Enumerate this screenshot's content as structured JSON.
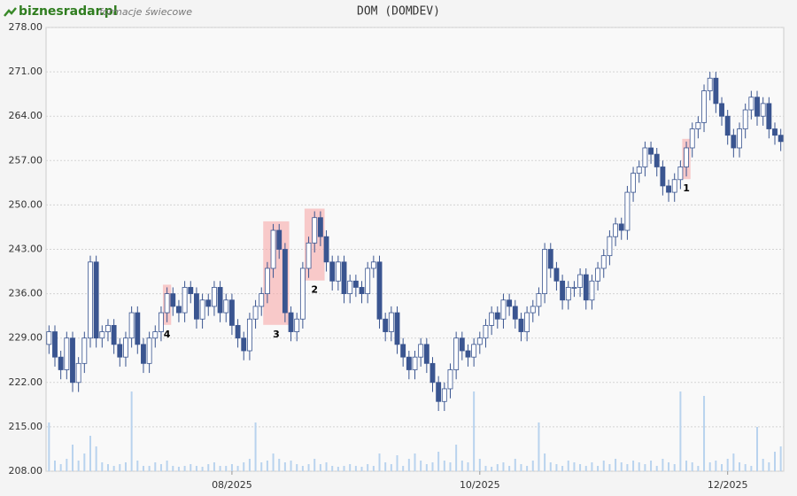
{
  "header": {
    "brand": "biznesradar.pl",
    "subtitle": "formacje świecowe"
  },
  "chart_data": {
    "type": "candlestick",
    "title": "DOM (DOMDEV)",
    "categories": [
      null,
      null,
      null,
      null,
      null,
      null,
      null,
      null,
      null,
      null,
      null,
      null,
      null,
      null,
      null,
      null,
      null,
      null,
      null,
      null,
      null,
      null,
      null,
      null,
      null,
      null,
      null,
      null,
      null,
      null,
      null,
      "08/2025",
      null,
      null,
      null,
      null,
      null,
      null,
      null,
      null,
      null,
      null,
      null,
      null,
      null,
      null,
      null,
      null,
      null,
      null,
      null,
      null,
      null,
      null,
      null,
      null,
      null,
      null,
      null,
      null,
      null,
      null,
      null,
      null,
      null,
      null,
      null,
      null,
      null,
      null,
      null,
      null,
      null,
      "10/2025",
      null,
      null,
      null,
      null,
      null,
      null,
      null,
      null,
      null,
      null,
      null,
      null,
      null,
      null,
      null,
      null,
      null,
      null,
      null,
      null,
      null,
      null,
      null,
      null,
      null,
      null,
      null,
      null,
      null,
      null,
      null,
      null,
      null,
      null,
      null,
      null,
      null,
      null,
      null,
      null,
      null,
      "12/2025",
      null,
      null,
      null,
      null,
      null,
      null,
      null,
      null,
      null
    ],
    "open": [
      228,
      230,
      226,
      224,
      229,
      222,
      225,
      229,
      241,
      229,
      230,
      231,
      228,
      226,
      229,
      233,
      228,
      225,
      229,
      230,
      233,
      236,
      234,
      233,
      237,
      236,
      232,
      235,
      234,
      237,
      233,
      235,
      231,
      229,
      227,
      232,
      234,
      236,
      240,
      246,
      243,
      233,
      230,
      232,
      240,
      244,
      248,
      245,
      241,
      238,
      241,
      236,
      238,
      237,
      236,
      240,
      241,
      232,
      230,
      233,
      228,
      226,
      224,
      226,
      228,
      225,
      222,
      219,
      221,
      224,
      229,
      227,
      226,
      228,
      229,
      231,
      233,
      232,
      235,
      234,
      232,
      230,
      233,
      234,
      236,
      243,
      240,
      238,
      235,
      237,
      237,
      239,
      235,
      238,
      240,
      242,
      245,
      247,
      246,
      252,
      255,
      256,
      259,
      258,
      256,
      253,
      252,
      254,
      256,
      259,
      262,
      263,
      268,
      270,
      266,
      264,
      261,
      259,
      262,
      265,
      267,
      264,
      266,
      262,
      261
    ],
    "high": [
      231,
      231,
      227,
      230,
      230,
      226,
      230,
      242,
      242,
      231,
      232,
      232,
      229,
      230,
      234,
      234,
      229,
      230,
      231,
      234,
      237,
      237,
      235,
      238,
      238,
      237,
      236,
      236,
      238,
      238,
      236,
      236,
      232,
      230,
      233,
      235,
      237,
      241,
      247,
      247,
      244,
      234,
      233,
      241,
      245,
      249,
      249,
      246,
      242,
      242,
      242,
      239,
      239,
      238,
      241,
      242,
      242,
      233,
      234,
      234,
      229,
      227,
      227,
      229,
      229,
      226,
      223,
      222,
      225,
      230,
      230,
      228,
      229,
      230,
      232,
      234,
      234,
      236,
      236,
      235,
      233,
      234,
      235,
      237,
      244,
      244,
      241,
      239,
      238,
      238,
      240,
      240,
      239,
      241,
      243,
      246,
      248,
      248,
      253,
      256,
      257,
      260,
      260,
      259,
      257,
      254,
      255,
      257,
      260,
      263,
      264,
      269,
      271,
      271,
      267,
      265,
      262,
      263,
      266,
      268,
      268,
      267,
      267,
      263,
      262
    ],
    "low": [
      226.5,
      224.5,
      222.5,
      222.5,
      220.5,
      220.5,
      223.5,
      227.5,
      227.5,
      227.5,
      228.5,
      226.5,
      224.5,
      224.5,
      227.5,
      226.5,
      223.5,
      223.5,
      227.5,
      228.5,
      231.5,
      232.5,
      231.5,
      231.5,
      234.5,
      230.5,
      230.5,
      232.5,
      232.5,
      231.5,
      231.5,
      229.5,
      227.5,
      225.5,
      225.5,
      230.5,
      232.5,
      234.5,
      238.5,
      241.5,
      231.5,
      228.5,
      228.5,
      230.5,
      238.5,
      242.5,
      243.5,
      239.5,
      236.5,
      236.5,
      234.5,
      234.5,
      235.5,
      234.5,
      234.5,
      238.5,
      230.5,
      228.5,
      228.5,
      226.5,
      224.5,
      222.5,
      222.5,
      224.5,
      223.5,
      220.5,
      217.5,
      217.5,
      219.5,
      222.5,
      225.5,
      224.5,
      224.5,
      226.5,
      227.5,
      229.5,
      230.5,
      230.5,
      232.5,
      230.5,
      228.5,
      228.5,
      231.5,
      232.5,
      234.5,
      238.5,
      236.5,
      233.5,
      233.5,
      235.5,
      235.5,
      233.5,
      233.5,
      236.5,
      238.5,
      240.5,
      243.5,
      244.5,
      244.5,
      250.5,
      253.5,
      254.5,
      256.5,
      254.5,
      251.5,
      250.5,
      250.5,
      252.5,
      254.5,
      257.5,
      260.5,
      261.5,
      266.5,
      264.5,
      262.5,
      259.5,
      257.5,
      257.5,
      260.5,
      263.5,
      262.5,
      262.5,
      260.5,
      259.5,
      258.5
    ],
    "close": [
      230,
      226,
      224,
      229,
      222,
      225,
      229,
      241,
      229,
      230,
      231,
      228,
      226,
      229,
      233,
      228,
      225,
      229,
      230,
      233,
      236,
      234,
      233,
      237,
      236,
      232,
      235,
      234,
      237,
      233,
      235,
      231,
      229,
      227,
      232,
      234,
      236,
      240,
      246,
      243,
      233,
      230,
      232,
      240,
      244,
      248,
      245,
      241,
      238,
      241,
      236,
      238,
      237,
      236,
      240,
      241,
      232,
      230,
      233,
      228,
      226,
      224,
      226,
      228,
      225,
      222,
      219,
      221,
      224,
      229,
      227,
      226,
      228,
      229,
      231,
      233,
      232,
      235,
      234,
      232,
      230,
      233,
      234,
      236,
      243,
      240,
      238,
      235,
      237,
      237,
      239,
      235,
      238,
      240,
      242,
      245,
      247,
      246,
      252,
      255,
      256,
      259,
      258,
      256,
      253,
      252,
      254,
      256,
      259,
      262,
      263,
      268,
      270,
      266,
      264,
      261,
      259,
      262,
      265,
      267,
      264,
      266,
      262,
      261,
      260
    ],
    "volume": [
      55,
      12,
      8,
      14,
      30,
      12,
      20,
      40,
      28,
      10,
      8,
      6,
      8,
      10,
      90,
      12,
      6,
      6,
      10,
      8,
      12,
      6,
      5,
      6,
      8,
      6,
      5,
      8,
      10,
      6,
      6,
      8,
      6,
      10,
      14,
      55,
      10,
      12,
      20,
      14,
      10,
      12,
      8,
      6,
      8,
      14,
      8,
      10,
      6,
      5,
      6,
      8,
      6,
      5,
      8,
      6,
      20,
      10,
      8,
      18,
      6,
      14,
      20,
      12,
      8,
      10,
      22,
      12,
      10,
      30,
      12,
      10,
      90,
      14,
      6,
      5,
      8,
      10,
      6,
      14,
      8,
      6,
      12,
      55,
      20,
      10,
      8,
      6,
      12,
      10,
      8,
      6,
      10,
      6,
      12,
      8,
      14,
      10,
      8,
      12,
      10,
      8,
      12,
      6,
      14,
      10,
      8,
      90,
      12,
      10,
      6,
      85,
      10,
      12,
      8,
      14,
      20,
      10,
      8,
      6,
      50,
      14,
      10,
      22,
      28
    ],
    "up_color": "#ffffff",
    "down_color": "#3a5590",
    "volume_color": "#b9d3ee",
    "ylim": [
      208,
      278
    ],
    "yticks": [
      {
        "value": 208,
        "label": "208.00"
      },
      {
        "value": 215,
        "label": "215.00"
      },
      {
        "value": 222,
        "label": "222.00"
      },
      {
        "value": 229,
        "label": "229.00"
      },
      {
        "value": 236,
        "label": "236.00"
      },
      {
        "value": 243,
        "label": "243.00"
      },
      {
        "value": 250,
        "label": "250.00"
      },
      {
        "value": 257,
        "label": "257.00"
      },
      {
        "value": 264,
        "label": "264.00"
      },
      {
        "value": 271,
        "label": "271.00"
      },
      {
        "value": 278,
        "label": "278.00"
      }
    ],
    "grid": true,
    "annotations": [
      {
        "label": "1"
      },
      {
        "label": "2"
      },
      {
        "label": "3"
      },
      {
        "label": "4"
      }
    ]
  }
}
